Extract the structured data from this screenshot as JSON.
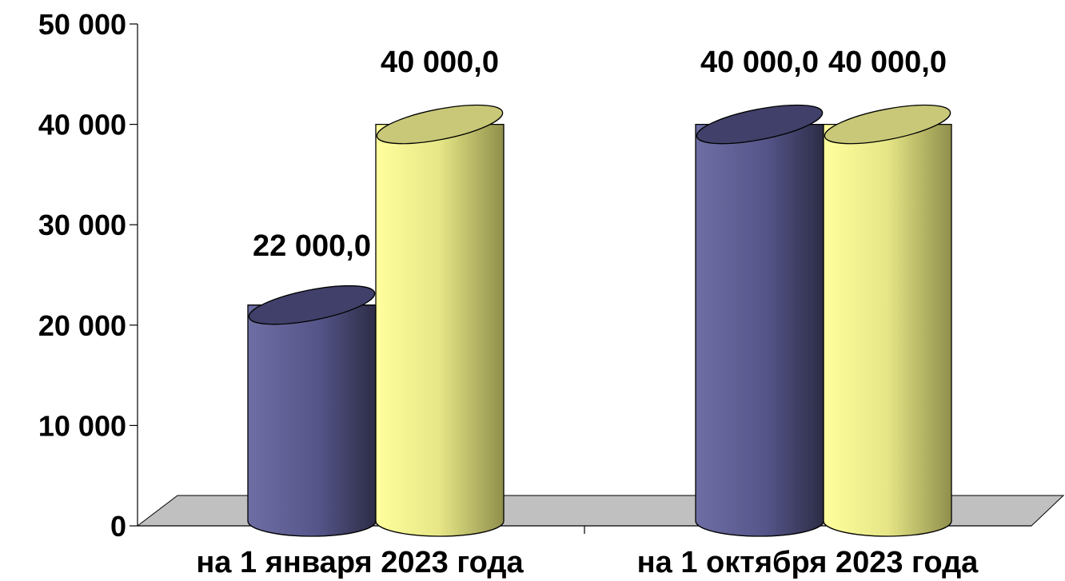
{
  "chart_data": {
    "type": "bar",
    "style": "3d-cylinder",
    "categories": [
      "на  1 января 2023 года",
      "на  1 октября 2023 года"
    ],
    "series": [
      {
        "values": [
          22000,
          40000
        ],
        "color": "#5a5a8c",
        "data_labels": [
          "22 000,0",
          "40 000,0"
        ]
      },
      {
        "values": [
          40000,
          40000
        ],
        "color": "#f2f28e",
        "data_labels": [
          "40 000,0",
          "40 000,0"
        ]
      }
    ],
    "yticks": [
      0,
      10000,
      20000,
      30000,
      40000,
      50000
    ],
    "ytick_labels": [
      "0",
      "10 000",
      "20 000",
      "30 000",
      "40 000",
      "50 000"
    ],
    "ylim": [
      0,
      50000
    ],
    "grid": false,
    "legend": "none",
    "floor_color": "#c0c0c0"
  }
}
